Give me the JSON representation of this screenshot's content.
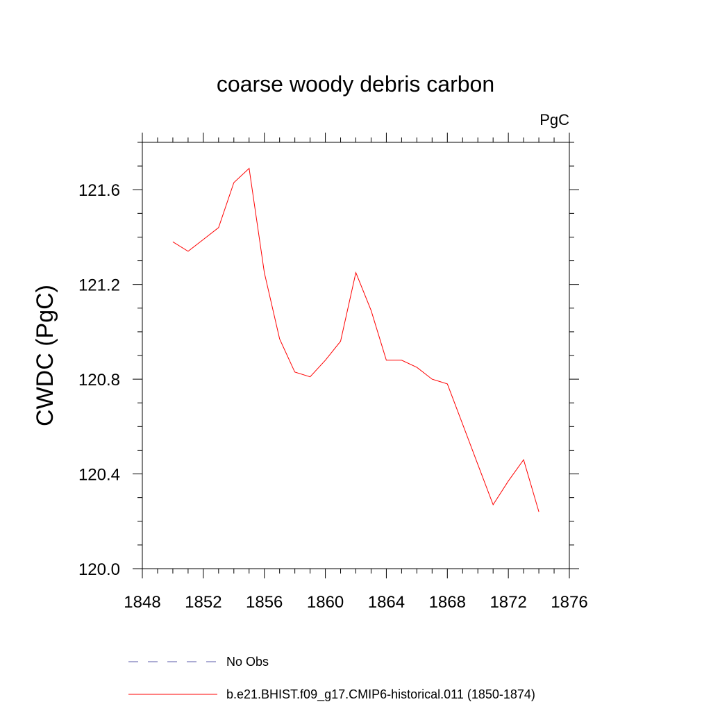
{
  "chart_data": {
    "type": "line",
    "title": "coarse woody debris carbon",
    "units": "PgC",
    "xlabel": "",
    "ylabel": "CWDC  (PgC)",
    "xlim": [
      1848,
      1876
    ],
    "ylim": [
      120.0,
      121.8
    ],
    "x_ticks": [
      1848,
      1852,
      1856,
      1860,
      1864,
      1868,
      1872,
      1876
    ],
    "x_tick_labels": [
      "1848",
      "1852",
      "1856",
      "1860",
      "1864",
      "1868",
      "1872",
      "1876"
    ],
    "y_ticks": [
      120.0,
      120.4,
      120.8,
      121.2,
      121.6
    ],
    "y_tick_labels": [
      "120.0",
      "120.4",
      "120.8",
      "121.2",
      "121.6"
    ],
    "grid": false,
    "legend_position": "bottom",
    "legend": [
      {
        "label": "No Obs",
        "color": "#5a5aa8",
        "style": "dashed"
      },
      {
        "label": "b.e21.BHIST.f09_g17.CMIP6-historical.011 (1850-1874)",
        "color": "#ff0000",
        "style": "solid"
      }
    ],
    "series": [
      {
        "name": "b.e21.BHIST.f09_g17.CMIP6-historical.011 (1850-1874)",
        "color": "#ff0000",
        "x": [
          1850,
          1851,
          1852,
          1853,
          1854,
          1855,
          1856,
          1857,
          1858,
          1859,
          1860,
          1861,
          1862,
          1863,
          1864,
          1865,
          1866,
          1867,
          1868,
          1869,
          1870,
          1871,
          1872,
          1873,
          1874
        ],
        "y": [
          121.38,
          121.34,
          121.39,
          121.44,
          121.63,
          121.69,
          121.25,
          120.97,
          120.83,
          120.81,
          120.88,
          120.96,
          121.25,
          121.09,
          120.88,
          120.88,
          120.85,
          120.8,
          120.78,
          120.61,
          120.44,
          120.27,
          120.37,
          120.46,
          120.24
        ]
      }
    ]
  }
}
